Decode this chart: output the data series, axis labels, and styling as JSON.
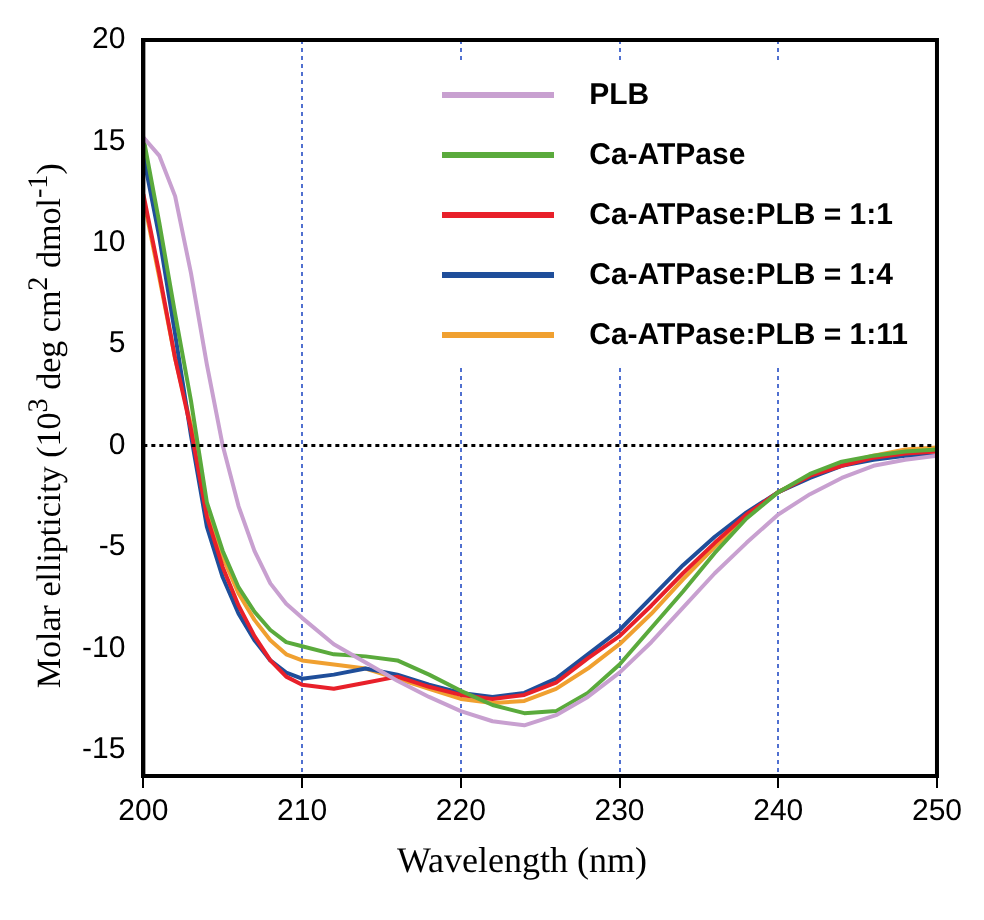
{
  "chart_data": {
    "type": "line",
    "xlabel": "Wavelength (nm)",
    "ylabel": "Molar ellipticity (10$^{3}$ deg cm$^{2}$ dmol$^{-1}$)",
    "x": [
      200,
      201,
      202,
      203,
      204,
      205,
      206,
      207,
      208,
      209,
      210,
      212,
      214,
      216,
      218,
      220,
      222,
      224,
      226,
      228,
      230,
      232,
      234,
      236,
      238,
      240,
      242,
      244,
      246,
      248,
      250
    ],
    "series": [
      {
        "name": "PLB",
        "color": "#c8a0d0",
        "values": [
          15.2,
          14.3,
          12.3,
          8.5,
          4,
          0,
          -3,
          -5.2,
          -6.8,
          -7.8,
          -8.5,
          -9.8,
          -10.7,
          -11.6,
          -12.4,
          -13.1,
          -13.6,
          -13.8,
          -13.3,
          -12.4,
          -11.2,
          -9.7,
          -8,
          -6.3,
          -4.8,
          -3.4,
          -2.4,
          -1.6,
          -1,
          -0.7,
          -0.5
        ]
      },
      {
        "name": "Ca-ATPase",
        "color": "#5aaa3c",
        "values": [
          15.2,
          11,
          6.5,
          2.2,
          -2.8,
          -5.2,
          -7,
          -8.2,
          -9.1,
          -9.7,
          -9.9,
          -10.3,
          -10.4,
          -10.6,
          -11.3,
          -12.1,
          -12.8,
          -13.2,
          -13.1,
          -12.2,
          -10.8,
          -9,
          -7.2,
          -5.3,
          -3.6,
          -2.3,
          -1.4,
          -0.8,
          -0.5,
          -0.3,
          -0.2
        ]
      },
      {
        "name": "Ca-ATPase:PLB = 1:1",
        "color": "#e8202a",
        "values": [
          12.4,
          8.5,
          4.3,
          0.8,
          -3.5,
          -6,
          -7.9,
          -9.4,
          -10.6,
          -11.4,
          -11.8,
          -12,
          -11.7,
          -11.4,
          -11.9,
          -12.3,
          -12.5,
          -12.3,
          -11.7,
          -10.5,
          -9.4,
          -7.9,
          -6.3,
          -4.8,
          -3.4,
          -2.3,
          -1.5,
          -1,
          -0.6,
          -0.4,
          -0.3
        ]
      },
      {
        "name": "Ca-ATPase:PLB = 1:4",
        "color": "#1f4e9a",
        "values": [
          14.3,
          10.3,
          5.5,
          0.5,
          -4,
          -6.5,
          -8.3,
          -9.6,
          -10.6,
          -11.2,
          -11.5,
          -11.3,
          -11,
          -11.3,
          -11.8,
          -12.2,
          -12.4,
          -12.2,
          -11.5,
          -10.3,
          -9.1,
          -7.5,
          -5.9,
          -4.5,
          -3.3,
          -2.3,
          -1.6,
          -1,
          -0.7,
          -0.5,
          -0.5
        ]
      },
      {
        "name": "Ca-ATPase:PLB = 1:11",
        "color": "#f0a030",
        "values": [
          12.2,
          8.3,
          4.3,
          1,
          -3,
          -5.5,
          -7.3,
          -8.6,
          -9.6,
          -10.3,
          -10.6,
          -10.8,
          -11,
          -11.5,
          -12,
          -12.5,
          -12.7,
          -12.6,
          -12,
          -11,
          -9.8,
          -8.3,
          -6.6,
          -5,
          -3.5,
          -2.3,
          -1.5,
          -0.9,
          -0.5,
          -0.2,
          -0.1
        ]
      }
    ],
    "xlim": [
      200,
      250
    ],
    "xticks": [
      200,
      210,
      220,
      230,
      240,
      250
    ],
    "ylim": [
      -16.3,
      20
    ],
    "yticks": [
      -15,
      -10,
      -5,
      0,
      5,
      10,
      15,
      20
    ],
    "ref_lines": [
      {
        "axis": "y",
        "value": 0,
        "color": "#000000",
        "line_style": "dotted"
      }
    ],
    "grid": "x",
    "legend": "top right",
    "marker": "none",
    "line_style": "solid"
  }
}
